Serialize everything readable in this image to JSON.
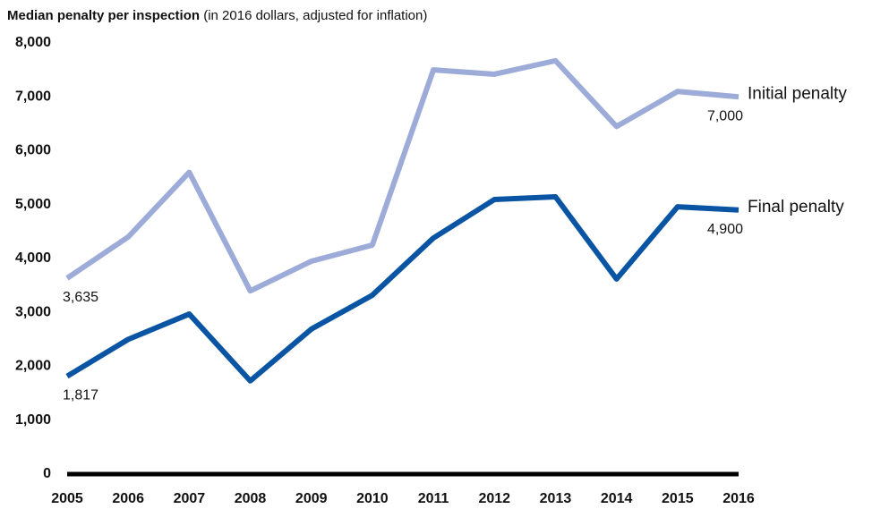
{
  "chart_data": {
    "type": "line",
    "title": "Median penalty per inspection",
    "subtitle": "(in 2016 dollars, adjusted for inflation)",
    "categories": [
      "2005",
      "2006",
      "2007",
      "2008",
      "2009",
      "2010",
      "2011",
      "2012",
      "2013",
      "2014",
      "2015",
      "2016"
    ],
    "series": [
      {
        "name": "Initial penalty",
        "color": "#9dabd8",
        "values": [
          3635,
          4400,
          5600,
          3400,
          3950,
          4250,
          7500,
          7420,
          7670,
          6450,
          7100,
          7000
        ],
        "value_labels": [
          "3,635",
          null,
          null,
          null,
          null,
          null,
          null,
          null,
          null,
          null,
          null,
          "7,000"
        ]
      },
      {
        "name": "Final penalty",
        "color": "#0a55a3",
        "values": [
          1817,
          2500,
          2970,
          1730,
          2690,
          3320,
          4380,
          5095,
          5145,
          3620,
          4960,
          4900
        ],
        "value_labels": [
          "1,817",
          null,
          null,
          null,
          null,
          null,
          null,
          null,
          null,
          null,
          null,
          "4,900"
        ]
      }
    ],
    "ylim": [
      0,
      8000
    ],
    "yticks": [
      0,
      {
        "value": 1000,
        "label": "1,000"
      },
      {
        "value": 2000,
        "label": "2,000"
      },
      {
        "value": 3000,
        "label": "3,000"
      },
      {
        "value": 4000,
        "label": "4,000"
      },
      {
        "value": 5000,
        "label": "5,000"
      },
      {
        "value": 6000,
        "label": "6,000"
      },
      {
        "value": 7000,
        "label": "7,000"
      },
      {
        "value": 8000,
        "label": "8,000"
      }
    ],
    "grid": false
  }
}
